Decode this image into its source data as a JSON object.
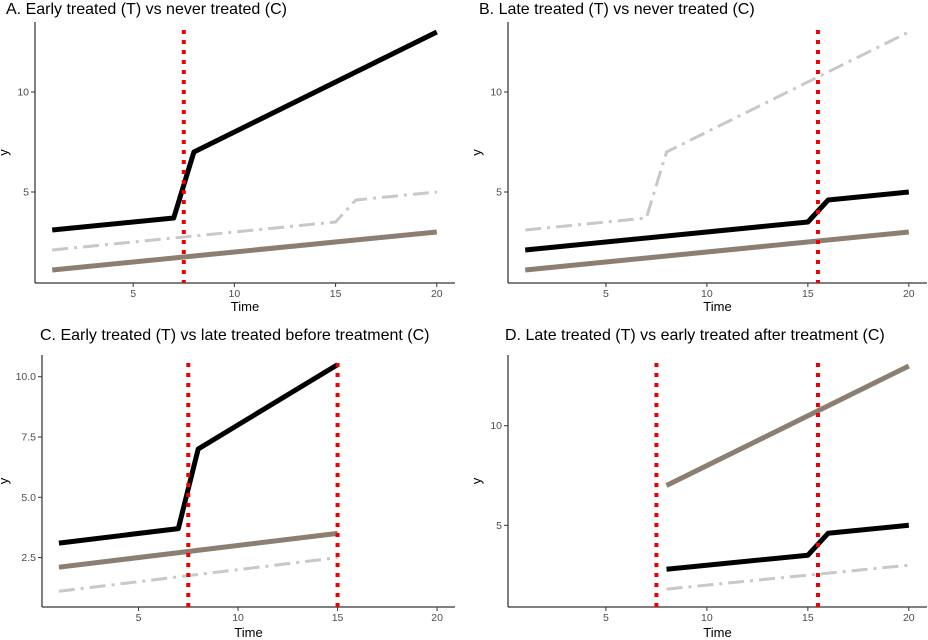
{
  "colors": {
    "treated": "#000000",
    "control": "#8c7e70",
    "counterfactual": "#c8c8c8",
    "treatment_line": "#ee0000"
  },
  "chart_data": [
    {
      "type": "line",
      "title": "A. Early treated (T) vs never treated (C)",
      "xlabel": "Time",
      "ylabel": "y",
      "xlim": [
        0.15,
        20.9
      ],
      "ylim": [
        0.45,
        13.5
      ],
      "xticks": [
        5,
        10,
        15,
        20
      ],
      "xtick_labels": [
        "5",
        "10",
        "15",
        "20"
      ],
      "yticks": [
        5,
        10
      ],
      "ytick_labels": [
        "5",
        "10"
      ],
      "treatment_times": [
        7.5
      ],
      "series": [
        {
          "role": "treated",
          "style": "solid",
          "x": [
            1,
            7,
            8,
            20
          ],
          "y": [
            3.1,
            3.7,
            7,
            13
          ]
        },
        {
          "role": "control",
          "style": "solid",
          "x": [
            1,
            20
          ],
          "y": [
            1.1,
            3
          ]
        },
        {
          "role": "counterfactual",
          "style": "dashdot",
          "x": [
            1,
            15,
            16,
            20
          ],
          "y": [
            2.1,
            3.5,
            4.6,
            5
          ]
        }
      ]
    },
    {
      "type": "line",
      "title": "B. Late treated (T) vs never treated (C)",
      "xlabel": "Time",
      "ylabel": "y",
      "xlim": [
        0.15,
        20.9
      ],
      "ylim": [
        0.45,
        13.5
      ],
      "xticks": [
        5,
        10,
        15,
        20
      ],
      "xtick_labels": [
        "5",
        "10",
        "15",
        "20"
      ],
      "yticks": [
        5,
        10
      ],
      "ytick_labels": [
        "5",
        "10"
      ],
      "treatment_times": [
        15.5
      ],
      "series": [
        {
          "role": "counterfactual",
          "style": "dashdot",
          "x": [
            1,
            7,
            8,
            20
          ],
          "y": [
            3.1,
            3.7,
            7,
            13
          ]
        },
        {
          "role": "treated",
          "style": "solid",
          "x": [
            1,
            15,
            16,
            20
          ],
          "y": [
            2.1,
            3.5,
            4.6,
            5
          ]
        },
        {
          "role": "control",
          "style": "solid",
          "x": [
            1,
            20
          ],
          "y": [
            1.1,
            3
          ]
        }
      ]
    },
    {
      "type": "line",
      "title": "C. Early treated (T) vs late treated before treatment (C)",
      "xlabel": "Time",
      "ylabel": "y",
      "xlim": [
        0.15,
        20.9
      ],
      "ylim": [
        0.45,
        10.9
      ],
      "xticks": [
        5,
        10,
        15,
        20
      ],
      "xtick_labels": [
        "5",
        "10",
        "15",
        "20"
      ],
      "yticks": [
        2.5,
        5,
        7.5,
        10
      ],
      "ytick_labels": [
        "2.5",
        "5.0",
        "7.5",
        "10.0"
      ],
      "treatment_times": [
        7.5,
        15
      ],
      "series": [
        {
          "role": "counterfactual",
          "style": "dashdot",
          "x": [
            1,
            15
          ],
          "y": [
            1.1,
            2.5
          ]
        },
        {
          "role": "control",
          "style": "solid",
          "x": [
            1,
            15
          ],
          "y": [
            2.1,
            3.5
          ]
        },
        {
          "role": "treated",
          "style": "solid",
          "x": [
            1,
            7,
            8,
            15
          ],
          "y": [
            3.1,
            3.7,
            7,
            10.5
          ]
        }
      ]
    },
    {
      "type": "line",
      "title": "D. Late treated (T) vs early treated after treatment (C)",
      "xlabel": "Time",
      "ylabel": "y",
      "xlim": [
        0.15,
        20.9
      ],
      "ylim": [
        0.9,
        13.55
      ],
      "xticks": [
        5,
        10,
        15,
        20
      ],
      "xtick_labels": [
        "5",
        "10",
        "15",
        "20"
      ],
      "yticks": [
        5,
        10
      ],
      "ytick_labels": [
        "5",
        "10"
      ],
      "treatment_times": [
        7.5,
        15.5
      ],
      "series": [
        {
          "role": "counterfactual",
          "style": "dashdot",
          "x": [
            8,
            20
          ],
          "y": [
            1.8,
            3
          ]
        },
        {
          "role": "control",
          "style": "solid",
          "x": [
            8,
            20
          ],
          "y": [
            7,
            13
          ]
        },
        {
          "role": "treated",
          "style": "solid",
          "x": [
            8,
            15,
            16,
            20
          ],
          "y": [
            2.8,
            3.5,
            4.6,
            5
          ]
        }
      ]
    }
  ]
}
